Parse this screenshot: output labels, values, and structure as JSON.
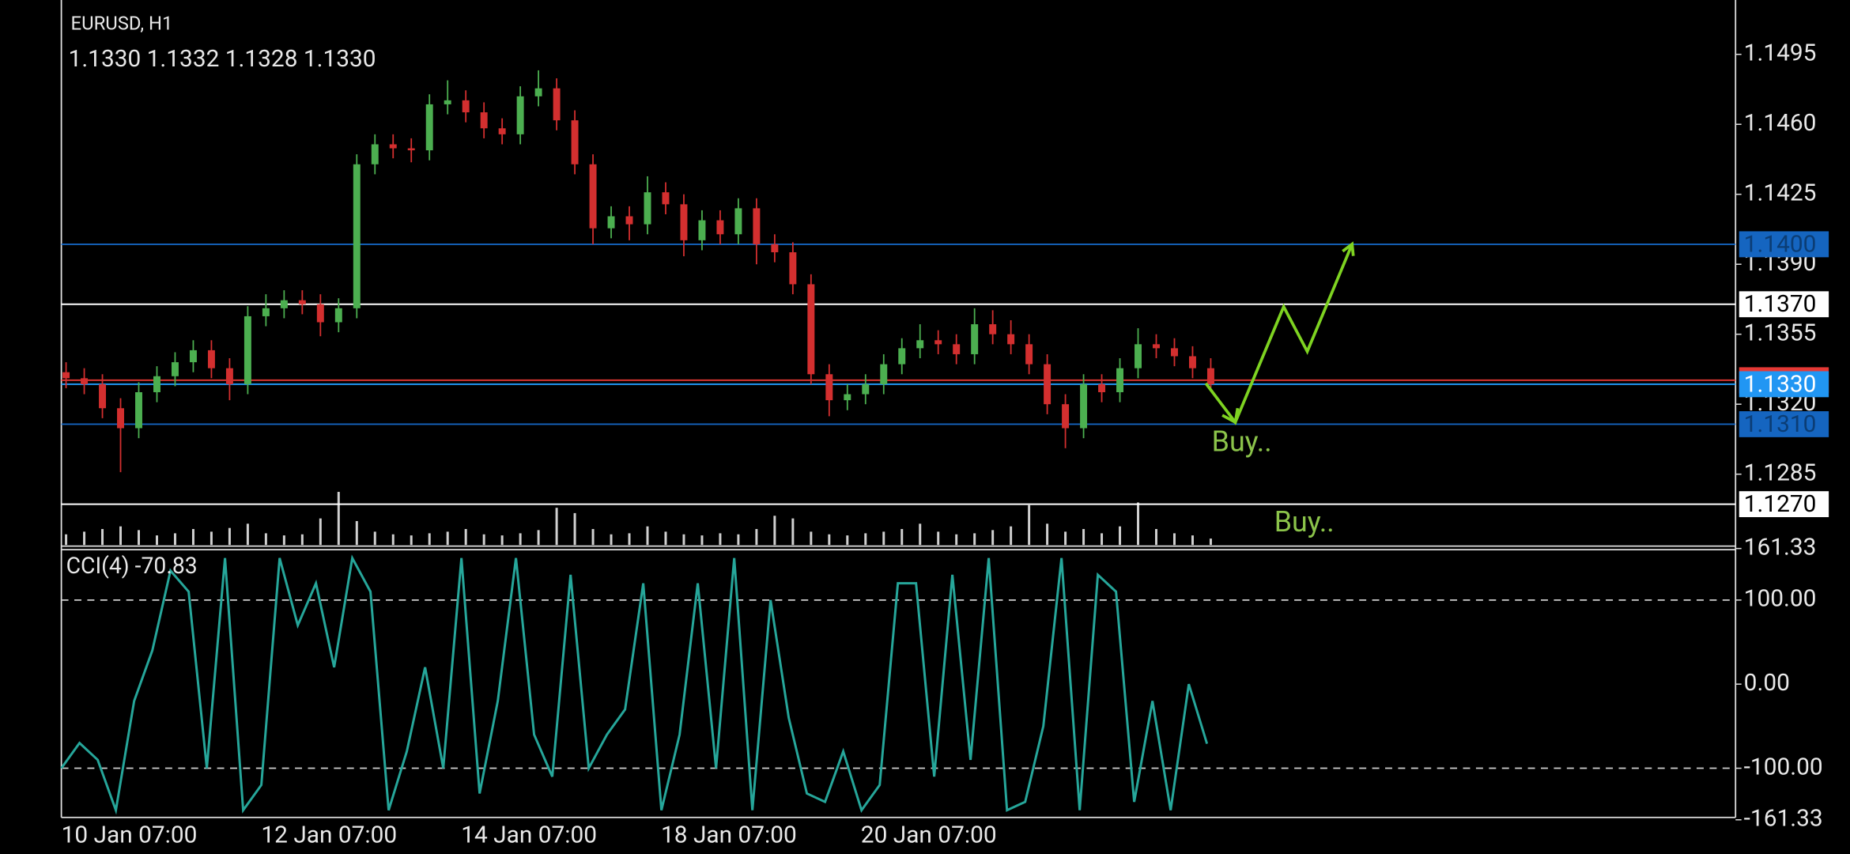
{
  "chart_data": [
    {
      "type": "candlestick",
      "title": "EURUSD, H1",
      "subtitle": "1.1330 1.1332 1.1328 1.1330",
      "categories": [
        "10 Jan 07:00",
        null,
        null,
        null,
        null,
        null,
        null,
        null,
        null,
        null,
        null,
        "12 Jan 07:00",
        null,
        null,
        null,
        null,
        null,
        null,
        null,
        null,
        null,
        null,
        "14 Jan 07:00",
        null,
        null,
        null,
        null,
        null,
        null,
        null,
        null,
        null,
        null,
        "18 Jan 07:00",
        null,
        null,
        null,
        null,
        null,
        null,
        null,
        null,
        null,
        null,
        "20 Jan 07:00",
        null,
        null,
        null,
        null,
        null,
        null,
        null,
        null,
        null,
        null,
        null,
        null,
        null,
        null,
        null,
        null,
        null,
        null,
        null
      ],
      "open": [
        1.1336,
        1.1333,
        1.133,
        1.1318,
        1.1308,
        1.1326,
        1.1334,
        1.1341,
        1.1347,
        1.1338,
        1.133,
        1.1364,
        1.1368,
        1.1372,
        1.137,
        1.1361,
        1.1368,
        1.144,
        1.145,
        1.1448,
        1.1447,
        1.147,
        1.1472,
        1.1466,
        1.1458,
        1.1455,
        1.1474,
        1.1478,
        1.1462,
        1.144,
        1.1408,
        1.1414,
        1.141,
        1.1426,
        1.142,
        1.1402,
        1.1412,
        1.1405,
        1.1418,
        1.14,
        1.1396,
        1.138,
        1.1335,
        1.1322,
        1.1325,
        1.133,
        1.134,
        1.1348,
        1.1352,
        1.135,
        1.1345,
        1.136,
        1.1355,
        1.135,
        1.134,
        1.132,
        1.1308,
        1.133,
        1.1326,
        1.1338,
        1.135,
        1.1348,
        1.1344,
        1.1338
      ],
      "high": [
        1.1341,
        1.1338,
        1.1335,
        1.1323,
        1.1331,
        1.1339,
        1.1346,
        1.1352,
        1.1352,
        1.1343,
        1.1369,
        1.1375,
        1.1377,
        1.1377,
        1.1375,
        1.1373,
        1.1445,
        1.1455,
        1.1455,
        1.1453,
        1.1475,
        1.1482,
        1.1477,
        1.1471,
        1.1463,
        1.1479,
        1.1487,
        1.1483,
        1.1467,
        1.1445,
        1.1419,
        1.1419,
        1.1434,
        1.1431,
        1.1425,
        1.1417,
        1.1417,
        1.1423,
        1.1423,
        1.1405,
        1.1401,
        1.1385,
        1.134,
        1.133,
        1.1335,
        1.1345,
        1.1353,
        1.136,
        1.1357,
        1.1355,
        1.1368,
        1.1367,
        1.1362,
        1.1355,
        1.1345,
        1.1325,
        1.1335,
        1.1335,
        1.1343,
        1.1358,
        1.1355,
        1.1353,
        1.1349,
        1.1343
      ],
      "low": [
        1.1328,
        1.1325,
        1.1313,
        1.1286,
        1.1303,
        1.1321,
        1.1329,
        1.1336,
        1.1333,
        1.1322,
        1.1325,
        1.1359,
        1.1363,
        1.1365,
        1.1354,
        1.1356,
        1.1363,
        1.1435,
        1.1443,
        1.1441,
        1.1442,
        1.1465,
        1.1461,
        1.1453,
        1.145,
        1.145,
        1.1469,
        1.1457,
        1.1435,
        1.14,
        1.1403,
        1.1402,
        1.1405,
        1.1415,
        1.1394,
        1.1397,
        1.14,
        1.14,
        1.139,
        1.1391,
        1.1375,
        1.133,
        1.1314,
        1.1317,
        1.132,
        1.1325,
        1.1335,
        1.1343,
        1.1345,
        1.134,
        1.134,
        1.135,
        1.1345,
        1.1335,
        1.1315,
        1.1298,
        1.1303,
        1.1321,
        1.1321,
        1.1333,
        1.1343,
        1.1339,
        1.1333,
        1.1328
      ],
      "close": [
        1.1333,
        1.133,
        1.1318,
        1.1308,
        1.1326,
        1.1334,
        1.1341,
        1.1347,
        1.1338,
        1.133,
        1.1364,
        1.1368,
        1.1372,
        1.137,
        1.1361,
        1.1368,
        1.144,
        1.145,
        1.1448,
        1.1447,
        1.147,
        1.1472,
        1.1466,
        1.1458,
        1.1455,
        1.1474,
        1.1478,
        1.1462,
        1.144,
        1.1408,
        1.1414,
        1.141,
        1.1426,
        1.142,
        1.1402,
        1.1412,
        1.1405,
        1.1418,
        1.14,
        1.1396,
        1.138,
        1.1335,
        1.1322,
        1.1325,
        1.133,
        1.134,
        1.1348,
        1.1352,
        1.135,
        1.1345,
        1.136,
        1.1355,
        1.135,
        1.134,
        1.132,
        1.1308,
        1.133,
        1.1326,
        1.1338,
        1.135,
        1.1348,
        1.1344,
        1.1338,
        1.133
      ],
      "up_color": "#4caf50",
      "down_color": "#d32f2f",
      "ylim": [
        1.12496,
        1.1521
      ],
      "yticks": [
        {
          "value": 1.1495,
          "label": "1.1495"
        },
        {
          "value": 1.146,
          "label": "1.1460"
        },
        {
          "value": 1.1425,
          "label": "1.1425"
        },
        {
          "value": 1.139,
          "label": "1.1390"
        },
        {
          "value": 1.1355,
          "label": "1.1355"
        },
        {
          "value": 1.132,
          "label": "1.1320"
        },
        {
          "value": 1.1285,
          "label": "1.1285"
        }
      ],
      "levels": [
        {
          "value": 1.14,
          "label": "1.1400",
          "color": "#1565c0",
          "text_color": "#0b3d75"
        },
        {
          "value": 1.137,
          "label": "1.1370",
          "color": "#ffffff",
          "text_color": "#000000"
        },
        {
          "value": 1.1332,
          "color": "#e53935"
        },
        {
          "value": 1.133,
          "label": "1.1330",
          "color": "#2196f3",
          "text_color": "#ffffff"
        },
        {
          "value": 1.131,
          "label": "1.1310",
          "color": "#1565c0",
          "text_color": "#0b3d75"
        },
        {
          "value": 1.127,
          "label": "1.1270",
          "color": "#ffffff",
          "text_color": "#000000"
        }
      ],
      "annotations": [
        "Buy..",
        "Buy.."
      ],
      "volume": {
        "color": "#d0d0d0",
        "values": [
          20,
          25,
          30,
          35,
          28,
          18,
          22,
          30,
          25,
          32,
          40,
          22,
          18,
          20,
          50,
          100,
          45,
          25,
          20,
          18,
          22,
          25,
          30,
          20,
          18,
          22,
          28,
          70,
          60,
          30,
          20,
          22,
          35,
          25,
          20,
          18,
          22,
          20,
          30,
          55,
          50,
          25,
          20,
          18,
          22,
          25,
          30,
          40,
          25,
          20,
          22,
          28,
          35,
          75,
          40,
          25,
          30,
          22,
          35,
          80,
          30,
          22,
          18,
          12
        ]
      }
    },
    {
      "type": "line",
      "title": "CCI(4) -70.83",
      "color": "#26a69a",
      "values": [
        -100,
        -70,
        -90,
        -150,
        -20,
        40,
        135,
        110,
        -100,
        150,
        -150,
        -120,
        150,
        70,
        120,
        20,
        150,
        110,
        -150,
        -80,
        20,
        -100,
        150,
        -130,
        -20,
        150,
        -60,
        -110,
        130,
        -100,
        -60,
        -30,
        120,
        -150,
        -60,
        120,
        -100,
        150,
        -150,
        100,
        -40,
        -130,
        -140,
        -80,
        -150,
        -120,
        120,
        120,
        -110,
        130,
        -90,
        150,
        -150,
        -140,
        -50,
        150,
        -150,
        130,
        110,
        -140,
        -20,
        -150,
        0,
        -70.83
      ],
      "ylim": [
        -161.33,
        161.33
      ],
      "yticks": [
        161.33,
        {
          "value": 100,
          "label": "100.00"
        },
        {
          "value": 0,
          "label": "0.00"
        },
        {
          "value": -100,
          "label": "-100.00"
        },
        -161.33
      ],
      "levels": [
        100,
        -100
      ]
    }
  ]
}
